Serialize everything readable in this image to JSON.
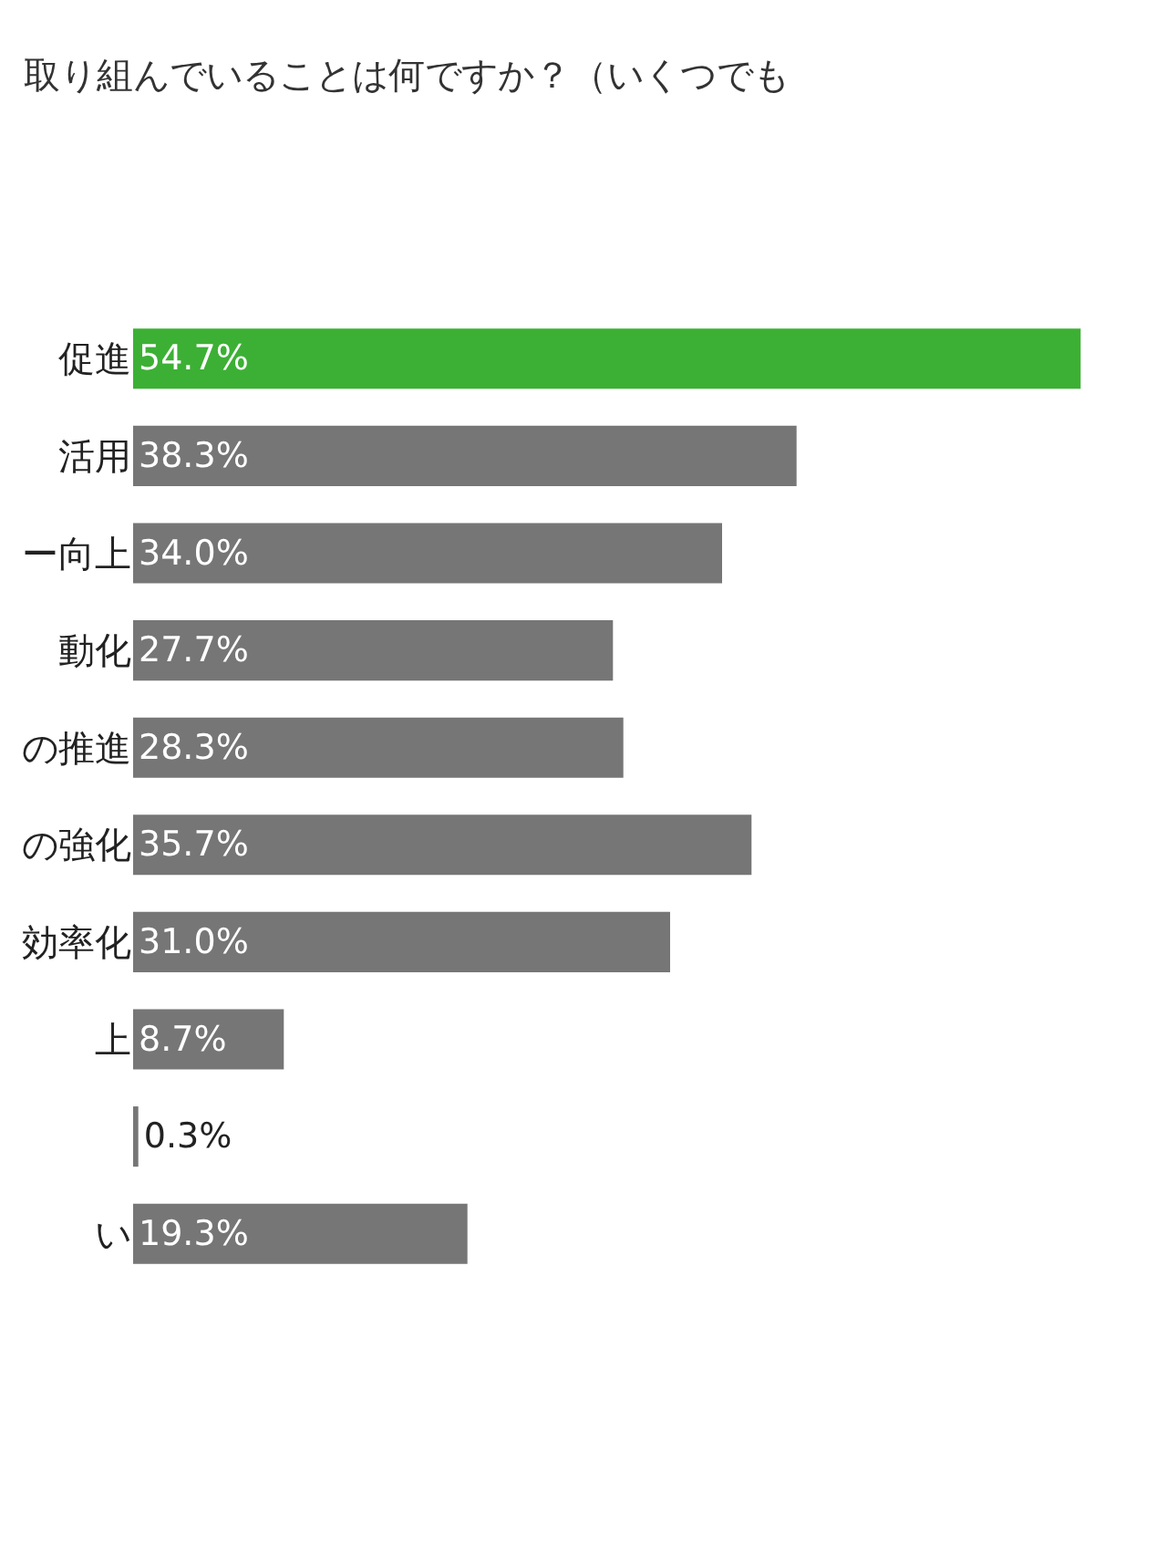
{
  "chart_data": {
    "type": "bar",
    "orientation": "horizontal",
    "title": "取り組んでいることは何ですか？（いくつでも",
    "categories": [
      "促進",
      "活用",
      "ー向上",
      "動化",
      "の推進",
      "の強化",
      "効率化",
      "上",
      null,
      "い"
    ],
    "values": [
      54.7,
      38.3,
      34.0,
      27.7,
      28.3,
      35.7,
      31.0,
      8.7,
      0.3,
      19.3
    ],
    "colors": [
      "#3cb034",
      "#767676",
      "#767676",
      "#767676",
      "#767676",
      "#767676",
      "#767676",
      "#767676",
      "#767676",
      "#767676"
    ],
    "value_labels": [
      "54.7%",
      "38.3%",
      "34.0%",
      "27.7%",
      "28.3%",
      "35.7%",
      "31.0%",
      "8.7%",
      "0.3%",
      "19.3%"
    ]
  }
}
